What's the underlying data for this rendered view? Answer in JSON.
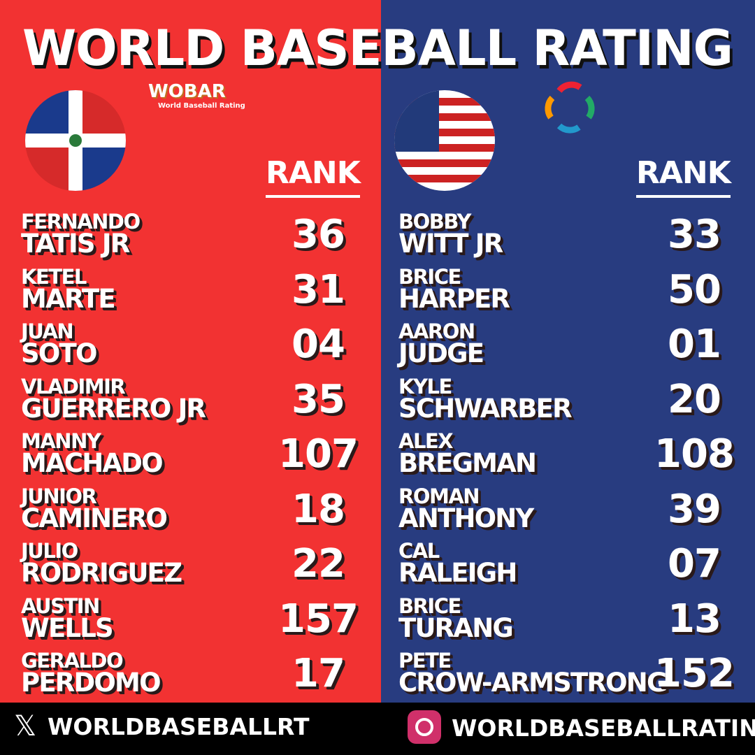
{
  "header": {
    "title": "WORLD BASEBALL RATING",
    "logo": "WOBAR",
    "logo_subtitle": "World Baseball Rating"
  },
  "teams": [
    {
      "rank_header": "RANK",
      "players": [
        {
          "first": "FERNANDO",
          "last": "TATIS JR",
          "rank": "36"
        },
        {
          "first": "KETEL",
          "last": "MARTE",
          "rank": "31"
        },
        {
          "first": "JUAN",
          "last": "SOTO",
          "rank": "04"
        },
        {
          "first": "VLADIMIR",
          "last": "GUERRERO JR",
          "rank": "35"
        },
        {
          "first": "MANNY",
          "last": "MACHADO",
          "rank": "107"
        },
        {
          "first": "JUNIOR",
          "last": "CAMINERO",
          "rank": "18"
        },
        {
          "first": "JULIO",
          "last": "RODRIGUEZ",
          "rank": "22"
        },
        {
          "first": "AUSTIN",
          "last": "WELLS",
          "rank": "157"
        },
        {
          "first": "GERALDO",
          "last": "PERDOMO",
          "rank": "17"
        }
      ]
    },
    {
      "rank_header": "RANK",
      "players": [
        {
          "first": "BOBBY",
          "last": "WITT JR",
          "rank": "33"
        },
        {
          "first": "BRICE",
          "last": "HARPER",
          "rank": "50"
        },
        {
          "first": "AARON",
          "last": "JUDGE",
          "rank": "01"
        },
        {
          "first": "KYLE",
          "last": "SCHWARBER",
          "rank": "20"
        },
        {
          "first": "ALEX",
          "last": "BREGMAN",
          "rank": "108"
        },
        {
          "first": "ROMAN",
          "last": "ANTHONY",
          "rank": "39"
        },
        {
          "first": "CAL",
          "last": "RALEIGH",
          "rank": "07"
        },
        {
          "first": "BRICE",
          "last": "TURANG",
          "rank": "13"
        },
        {
          "first": "PETE",
          "last": "CROW-ARMSTRONG",
          "rank": "152"
        }
      ]
    }
  ],
  "footer": {
    "x_handle": "WORLDBASEBALLRT",
    "instagram_handle": "WORLDBASEBALLRATING"
  }
}
